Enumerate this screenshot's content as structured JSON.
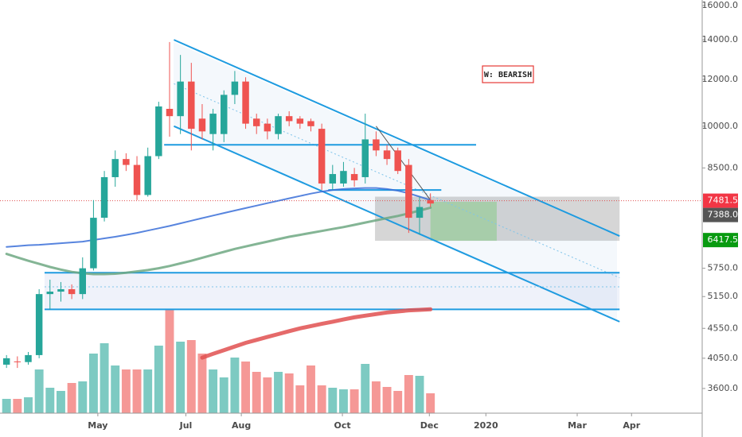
{
  "chart_data": {
    "type": "candlestick",
    "log_scale": true,
    "annotation": "W: BEARISH",
    "up_color": "#26a69a",
    "down_color": "#ef5350",
    "ylim": [
      3270,
      16350
    ],
    "yticks": [
      {
        "value": 16000,
        "label": "16000.0"
      },
      {
        "value": 14000,
        "label": "14000.0"
      },
      {
        "value": 12000,
        "label": "12000.0"
      },
      {
        "value": 10000,
        "label": "10000.0"
      },
      {
        "value": 8500,
        "label": "8500.0"
      },
      {
        "value": 5750,
        "label": "5750.0"
      },
      {
        "value": 5150,
        "label": "5150.0"
      },
      {
        "value": 4550,
        "label": "4550.0"
      },
      {
        "value": 4050,
        "label": "4050.0"
      },
      {
        "value": 3600,
        "label": "3600.0"
      }
    ],
    "xlim": [
      -0.6,
      64
    ],
    "xticks": [
      {
        "value": 8.4,
        "label": "May"
      },
      {
        "value": 16.5,
        "label": "Jul"
      },
      {
        "value": 21.6,
        "label": "Aug"
      },
      {
        "value": 30.9,
        "label": "Oct"
      },
      {
        "value": 38.9,
        "label": "Dec"
      },
      {
        "value": 44.1,
        "label": "2020"
      },
      {
        "value": 52.5,
        "label": "Mar"
      },
      {
        "value": 57.5,
        "label": "Apr"
      }
    ],
    "open": [
      3950,
      4000,
      3990,
      4100,
      5200,
      5250,
      5300,
      5200,
      5750,
      7000,
      8200,
      8800,
      8600,
      7650,
      8900,
      10700,
      10400,
      11900,
      10300,
      9700,
      9700,
      11300,
      11900,
      10300,
      10100,
      9700,
      10400,
      10300,
      10200,
      9900,
      8000,
      8000,
      8300,
      8200,
      9500,
      9100,
      9100,
      8600,
      7000,
      7500
    ],
    "close": [
      4050,
      3990,
      4100,
      5200,
      5250,
      5300,
      5200,
      5750,
      7000,
      8200,
      8800,
      8600,
      7650,
      8900,
      10800,
      10400,
      11900,
      9900,
      9800,
      10500,
      11300,
      11900,
      10100,
      10000,
      9800,
      10400,
      10200,
      10100,
      10000,
      8000,
      8300,
      8400,
      8100,
      9500,
      9100,
      8800,
      8400,
      7000,
      7300,
      7400
    ],
    "high": [
      4100,
      4080,
      4150,
      5300,
      5500,
      5450,
      5400,
      6000,
      7500,
      8400,
      9100,
      9000,
      8900,
      9200,
      11000,
      13880,
      13200,
      12800,
      10900,
      10700,
      11500,
      12400,
      12100,
      10500,
      10300,
      10500,
      10600,
      10400,
      10300,
      10100,
      8600,
      8700,
      8500,
      10500,
      9800,
      9300,
      9200,
      8800,
      7600,
      7700
    ],
    "low": [
      3900,
      3900,
      3950,
      4050,
      4900,
      5050,
      5100,
      5100,
      5700,
      6900,
      7900,
      8400,
      7500,
      7600,
      8800,
      9600,
      9700,
      9100,
      9500,
      9100,
      9400,
      10900,
      9900,
      9700,
      9500,
      9500,
      10000,
      9900,
      9800,
      7800,
      7800,
      7900,
      7900,
      8000,
      8900,
      8600,
      8300,
      6600,
      6550,
      7300
    ],
    "volume": [
      18,
      18,
      20,
      55,
      32,
      28,
      38,
      40,
      75,
      88,
      60,
      55,
      55,
      55,
      85,
      130,
      90,
      92,
      75,
      55,
      45,
      70,
      65,
      52,
      45,
      52,
      50,
      35,
      60,
      35,
      32,
      30,
      30,
      62,
      40,
      33,
      28,
      48,
      47,
      25
    ],
    "lines": [
      {
        "color": "#3a6fd8",
        "width": 2,
        "values": [
          6250,
          6270,
          6290,
          6300,
          6320,
          6340,
          6360,
          6380,
          6420,
          6460,
          6500,
          6550,
          6600,
          6660,
          6720,
          6780,
          6850,
          6920,
          6990,
          7060,
          7130,
          7200,
          7270,
          7340,
          7410,
          7480,
          7550,
          7620,
          7690,
          7750,
          7800,
          7830,
          7850,
          7860,
          7860,
          7830,
          7780,
          7700,
          7600,
          7500
        ]
      },
      {
        "color": "#6fa883",
        "width": 3,
        "values": [
          6080,
          6000,
          5920,
          5850,
          5780,
          5720,
          5670,
          5640,
          5620,
          5620,
          5630,
          5650,
          5680,
          5710,
          5750,
          5800,
          5860,
          5920,
          5990,
          6060,
          6130,
          6200,
          6260,
          6320,
          6380,
          6440,
          6500,
          6550,
          6600,
          6650,
          6700,
          6750,
          6810,
          6870,
          6930,
          6990,
          7050,
          7120,
          7200,
          7280
        ]
      },
      {
        "color": "#e05050",
        "width": 5,
        "values": [
          null,
          null,
          null,
          null,
          null,
          null,
          null,
          null,
          null,
          null,
          null,
          null,
          null,
          null,
          null,
          null,
          null,
          null,
          4060,
          4120,
          4180,
          4240,
          4300,
          4350,
          4400,
          4450,
          4500,
          4550,
          4590,
          4630,
          4670,
          4710,
          4750,
          4780,
          4810,
          4840,
          4860,
          4880,
          4890,
          4900
        ]
      }
    ],
    "trendlines": [
      {
        "color": "#1e9be0",
        "width": 2,
        "x": [
          15.4,
          56.4
        ],
        "values": [
          14000,
          6520
        ]
      },
      {
        "color": "#1e9be0",
        "width": 2,
        "x": [
          15.4,
          56.4
        ],
        "values": [
          10000,
          4670
        ]
      },
      {
        "color": "#7fc4ea",
        "width": 1,
        "dash": "2 3",
        "x": [
          15.4,
          56.4
        ],
        "values": [
          11800,
          5540
        ]
      },
      {
        "color": "#1e9be0",
        "width": 2,
        "x": [
          14.5,
          43.2
        ],
        "values": [
          9300,
          9300
        ]
      },
      {
        "color": "#1e9be0",
        "width": 2,
        "x": [
          29.6,
          40
        ],
        "values": [
          7800,
          7800
        ]
      },
      {
        "color": "#1e9be0",
        "width": 2,
        "x": [
          3.5,
          56.4
        ],
        "values": [
          5650,
          5650
        ]
      },
      {
        "color": "#1e9be0",
        "width": 2,
        "x": [
          3.5,
          56.4
        ],
        "values": [
          4900,
          4900
        ]
      },
      {
        "color": "#7fc4ea",
        "width": 1,
        "dash": "2 3",
        "x": [
          3.5,
          56.4
        ],
        "values": [
          5350,
          5350
        ]
      },
      {
        "color": "#555555",
        "width": 1,
        "x": [
          34,
          39
        ],
        "values": [
          10000,
          7500
        ]
      },
      {
        "color": "#e05050",
        "width": 1,
        "dash": "1 2",
        "x": [
          -0.6,
          64
        ],
        "values": [
          7481.5,
          7481.5
        ]
      }
    ],
    "zones": [
      {
        "color": "rgba(120,150,210,0.12)",
        "x": [
          3.5,
          56.4
        ],
        "values": [
          4900,
          5650
        ]
      },
      {
        "color": "rgba(120,120,120,0.3)",
        "x": [
          33.9,
          56.4
        ],
        "values": [
          6400,
          7600
        ]
      },
      {
        "color": "rgba(120,200,120,0.45)",
        "x": [
          39,
          45.1
        ],
        "values": [
          6400,
          7450
        ]
      }
    ],
    "price_labels": [
      {
        "value": 7481.5,
        "label": "7481.5",
        "color": "#f23645"
      },
      {
        "value": 7388,
        "label": "7388.0",
        "color": "#555555"
      },
      {
        "value": 6417.5,
        "label": "6417.5",
        "color": "#089a10"
      }
    ]
  }
}
